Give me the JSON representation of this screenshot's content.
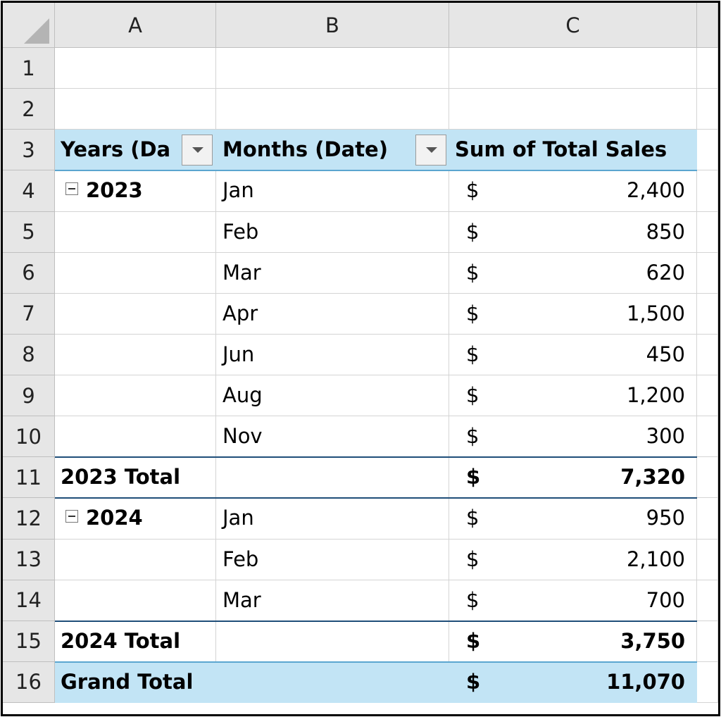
{
  "column_headers": [
    "A",
    "B",
    "C"
  ],
  "row_headers": [
    "1",
    "2",
    "3",
    "4",
    "5",
    "6",
    "7",
    "8",
    "9",
    "10",
    "11",
    "12",
    "13",
    "14",
    "15",
    "16"
  ],
  "pivot": {
    "header": [
      "Years (Da",
      "Months (Date)",
      "Sum of Total Sales"
    ],
    "rows": [
      [
        "2023",
        "Jan",
        "$",
        "2,400"
      ],
      [
        null,
        "Feb",
        "$",
        "850"
      ],
      [
        null,
        "Mar",
        "$",
        "620"
      ],
      [
        null,
        "Apr",
        "$",
        "1,500"
      ],
      [
        null,
        "Jun",
        "$",
        "450"
      ],
      [
        null,
        "Aug",
        "$",
        "1,200"
      ],
      [
        null,
        "Nov",
        "$",
        "300"
      ],
      [
        "2023 Total",
        null,
        "$",
        "7,320"
      ],
      [
        "2024",
        "Jan",
        "$",
        "950"
      ],
      [
        null,
        "Feb",
        "$",
        "2,100"
      ],
      [
        null,
        "Mar",
        "$",
        "700"
      ],
      [
        "2024 Total",
        null,
        "$",
        "3,750"
      ],
      [
        "Grand Total",
        null,
        "$",
        "11,070"
      ]
    ]
  }
}
